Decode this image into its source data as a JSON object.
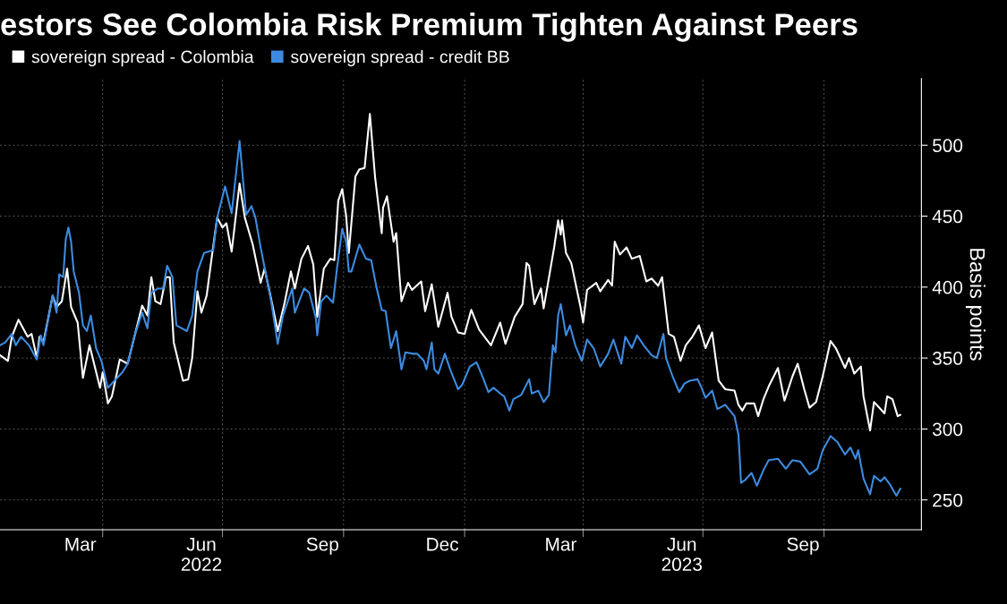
{
  "chart_data": {
    "type": "line",
    "title": "estors See Colombia Risk Premium Tighten Against Peers",
    "ylabel": "Basis points",
    "xlim": [
      "2022-01-13",
      "2023-12-14"
    ],
    "ylim": [
      229,
      547
    ],
    "yticks": [
      250,
      300,
      350,
      400,
      450,
      500
    ],
    "xticks": [
      {
        "value": "2022-03-15",
        "label": "Mar"
      },
      {
        "value": "2022-04-01",
        "label": null
      },
      {
        "value": "2022-06-15",
        "label": "Jun\n2022"
      },
      {
        "value": "2022-07-01",
        "label": null
      },
      {
        "value": "2022-09-15",
        "label": "Sep"
      },
      {
        "value": "2022-10-01",
        "label": null
      },
      {
        "value": "2022-12-15",
        "label": "Dec"
      },
      {
        "value": "2023-01-01",
        "label": null
      },
      {
        "value": "2023-03-15",
        "label": "Mar"
      },
      {
        "value": "2023-04-01",
        "label": null
      },
      {
        "value": "2023-06-15",
        "label": "Jun\n2023"
      },
      {
        "value": "2023-07-01",
        "label": null
      },
      {
        "value": "2023-09-15",
        "label": "Sep"
      },
      {
        "value": "2023-10-01",
        "label": null
      }
    ],
    "grid": true,
    "legend": "top left",
    "line_style": "solid",
    "series": [
      {
        "name": "sovereign spread - Colombia",
        "color": "#ffffff",
        "x": [
          "2022-01-13",
          "2022-01-19",
          "2022-01-22",
          "2022-01-27",
          "2022-02-03",
          "2022-02-06",
          "2022-02-10",
          "2022-02-12",
          "2022-02-15",
          "2022-02-22",
          "2022-02-25",
          "2022-03-01",
          "2022-03-05",
          "2022-03-08",
          "2022-03-13",
          "2022-03-17",
          "2022-03-22",
          "2022-03-30",
          "2022-04-01",
          "2022-04-05",
          "2022-04-08",
          "2022-04-14",
          "2022-04-20",
          "2022-05-01",
          "2022-05-05",
          "2022-05-08",
          "2022-05-11",
          "2022-05-15",
          "2022-05-19",
          "2022-05-22",
          "2022-05-25",
          "2022-06-01",
          "2022-06-05",
          "2022-06-08",
          "2022-06-12",
          "2022-06-15",
          "2022-06-19",
          "2022-06-23",
          "2022-06-27",
          "2022-07-01",
          "2022-07-04",
          "2022-07-08",
          "2022-07-14",
          "2022-07-18",
          "2022-07-24",
          "2022-07-30",
          "2022-08-02",
          "2022-08-06",
          "2022-08-12",
          "2022-08-17",
          "2022-08-22",
          "2022-08-25",
          "2022-08-30",
          "2022-09-04",
          "2022-09-08",
          "2022-09-11",
          "2022-09-16",
          "2022-09-21",
          "2022-09-24",
          "2022-09-27",
          "2022-09-30",
          "2022-10-03",
          "2022-10-05",
          "2022-10-10",
          "2022-10-13",
          "2022-10-17",
          "2022-10-21",
          "2022-10-25",
          "2022-10-30",
          "2022-10-31",
          "2022-11-03",
          "2022-11-08",
          "2022-11-10",
          "2022-11-14",
          "2022-11-19",
          "2022-11-22",
          "2022-11-29",
          "2022-12-02",
          "2022-12-07",
          "2022-12-12",
          "2022-12-19",
          "2022-12-22",
          "2022-12-27",
          "2023-01-01",
          "2023-01-06",
          "2023-01-12",
          "2023-01-21",
          "2023-01-28",
          "2023-02-01",
          "2023-02-08",
          "2023-02-14",
          "2023-02-17",
          "2023-02-19",
          "2023-02-23",
          "2023-02-28",
          "2023-03-02",
          "2023-03-10",
          "2023-03-13",
          "2023-03-15",
          "2023-03-16",
          "2023-03-19",
          "2023-03-23",
          "2023-03-30",
          "2023-04-01",
          "2023-04-04",
          "2023-04-11",
          "2023-04-14",
          "2023-04-20",
          "2023-04-23",
          "2023-04-25",
          "2023-04-29",
          "2023-05-04",
          "2023-05-08",
          "2023-05-14",
          "2023-05-19",
          "2023-05-23",
          "2023-05-28",
          "2023-05-31",
          "2023-06-05",
          "2023-06-09",
          "2023-06-14",
          "2023-06-18",
          "2023-06-23",
          "2023-06-28",
          "2023-07-03",
          "2023-07-08",
          "2023-07-13",
          "2023-07-18",
          "2023-07-25",
          "2023-07-28",
          "2023-07-31",
          "2023-08-03",
          "2023-08-09",
          "2023-08-12",
          "2023-08-16",
          "2023-08-20",
          "2023-08-27",
          "2023-09-01",
          "2023-09-07",
          "2023-09-11",
          "2023-09-16",
          "2023-09-20",
          "2023-09-25",
          "2023-09-30",
          "2023-10-06",
          "2023-10-10",
          "2023-10-17",
          "2023-10-20",
          "2023-10-24",
          "2023-10-29",
          "2023-10-31",
          "2023-11-05",
          "2023-11-08",
          "2023-11-16",
          "2023-11-18",
          "2023-11-22",
          "2023-11-26",
          "2023-11-28"
        ],
        "values": [
          352,
          348,
          365,
          377,
          365,
          367,
          350,
          365,
          361,
          394,
          386,
          390,
          413,
          386,
          375,
          336,
          359,
          329,
          340,
          318,
          323,
          349,
          346,
          387,
          380,
          407,
          390,
          388,
          407,
          407,
          361,
          334,
          335,
          350,
          397,
          382,
          394,
          422,
          449,
          442,
          445,
          425,
          473,
          449,
          430,
          403,
          413,
          396,
          369,
          388,
          411,
          399,
          420,
          429,
          416,
          379,
          413,
          420,
          419,
          461,
          469,
          450,
          424,
          478,
          483,
          484,
          522,
          477,
          438,
          456,
          464,
          432,
          438,
          390,
          403,
          398,
          404,
          383,
          402,
          372,
          396,
          379,
          368,
          367,
          384,
          370,
          359,
          375,
          360,
          379,
          388,
          417,
          415,
          388,
          399,
          385,
          428,
          447,
          437,
          447,
          424,
          417,
          386,
          375,
          398,
          403,
          397,
          405,
          401,
          432,
          423,
          428,
          420,
          422,
          404,
          406,
          401,
          407,
          367,
          365,
          348,
          359,
          365,
          373,
          357,
          368,
          334,
          328,
          327,
          317,
          313,
          318,
          318,
          309,
          321,
          330,
          343,
          320,
          337,
          346,
          328,
          315,
          319,
          337,
          362,
          357,
          343,
          350,
          339,
          344,
          323,
          299,
          319,
          311,
          323,
          321,
          309,
          310
        ]
      },
      {
        "name": "sovereign spread - credit BB",
        "color": "#3d8be0",
        "x": [
          "2022-01-13",
          "2022-01-17",
          "2022-01-22",
          "2022-01-25",
          "2022-01-29",
          "2022-02-04",
          "2022-02-10",
          "2022-02-13",
          "2022-02-15",
          "2022-02-22",
          "2022-02-25",
          "2022-02-27",
          "2022-03-02",
          "2022-03-04",
          "2022-03-06",
          "2022-03-08",
          "2022-03-10",
          "2022-03-14",
          "2022-03-17",
          "2022-03-20",
          "2022-03-23",
          "2022-03-27",
          "2022-03-31",
          "2022-04-05",
          "2022-04-09",
          "2022-04-16",
          "2022-04-20",
          "2022-04-25",
          "2022-05-01",
          "2022-05-05",
          "2022-05-08",
          "2022-05-13",
          "2022-05-17",
          "2022-05-20",
          "2022-05-24",
          "2022-05-27",
          "2022-06-04",
          "2022-06-08",
          "2022-06-12",
          "2022-06-17",
          "2022-06-24",
          "2022-06-27",
          "2022-07-03",
          "2022-07-08",
          "2022-07-14",
          "2022-07-19",
          "2022-07-23",
          "2022-07-26",
          "2022-07-30",
          "2022-08-03",
          "2022-08-07",
          "2022-08-12",
          "2022-08-16",
          "2022-08-23",
          "2022-08-25",
          "2022-09-01",
          "2022-09-05",
          "2022-09-10",
          "2022-09-11",
          "2022-09-14",
          "2022-09-18",
          "2022-09-23",
          "2022-09-26",
          "2022-09-30",
          "2022-10-03",
          "2022-10-05",
          "2022-10-07",
          "2022-10-13",
          "2022-10-18",
          "2022-10-22",
          "2022-10-26",
          "2022-10-30",
          "2022-11-02",
          "2022-11-06",
          "2022-11-10",
          "2022-11-14",
          "2022-11-17",
          "2022-11-23",
          "2022-11-26",
          "2022-12-01",
          "2022-12-03",
          "2022-12-07",
          "2022-12-09",
          "2022-12-12",
          "2022-12-17",
          "2022-12-21",
          "2022-12-27",
          "2022-12-30",
          "2023-01-05",
          "2023-01-10",
          "2023-01-15",
          "2023-01-19",
          "2023-01-23",
          "2023-01-28",
          "2023-01-31",
          "2023-02-04",
          "2023-02-07",
          "2023-02-13",
          "2023-02-19",
          "2023-02-21",
          "2023-02-26",
          "2023-03-02",
          "2023-03-06",
          "2023-03-09",
          "2023-03-11",
          "2023-03-13",
          "2023-03-15",
          "2023-03-19",
          "2023-03-22",
          "2023-03-26",
          "2023-03-31",
          "2023-04-04",
          "2023-04-09",
          "2023-04-14",
          "2023-04-20",
          "2023-04-24",
          "2023-04-30",
          "2023-05-03",
          "2023-05-08",
          "2023-05-12",
          "2023-05-17",
          "2023-05-23",
          "2023-05-27",
          "2023-06-01",
          "2023-06-03",
          "2023-06-08",
          "2023-06-13",
          "2023-06-17",
          "2023-06-21",
          "2023-06-27",
          "2023-06-30",
          "2023-07-03",
          "2023-07-08",
          "2023-07-12",
          "2023-07-18",
          "2023-07-25",
          "2023-07-28",
          "2023-07-30",
          "2023-08-02",
          "2023-08-07",
          "2023-08-11",
          "2023-08-16",
          "2023-08-20",
          "2023-08-27",
          "2023-09-02",
          "2023-09-07",
          "2023-09-13",
          "2023-09-20",
          "2023-09-26",
          "2023-09-30",
          "2023-10-06",
          "2023-10-11",
          "2023-10-17",
          "2023-10-21",
          "2023-10-25",
          "2023-10-27",
          "2023-10-31",
          "2023-11-05",
          "2023-11-08",
          "2023-11-13",
          "2023-11-16",
          "2023-11-20",
          "2023-11-25",
          "2023-11-28"
        ],
        "values": [
          359,
          361,
          367,
          359,
          365,
          359,
          349,
          366,
          359,
          394,
          382,
          409,
          407,
          434,
          442,
          432,
          411,
          396,
          373,
          369,
          380,
          357,
          348,
          329,
          333,
          340,
          346,
          365,
          382,
          371,
          396,
          399,
          399,
          415,
          407,
          373,
          369,
          380,
          411,
          424,
          426,
          449,
          471,
          452,
          503,
          451,
          457,
          449,
          428,
          409,
          390,
          360,
          380,
          399,
          382,
          399,
          396,
          378,
          366,
          390,
          394,
          389,
          413,
          441,
          432,
          411,
          411,
          430,
          420,
          419,
          400,
          384,
          383,
          357,
          369,
          342,
          354,
          353,
          353,
          348,
          342,
          361,
          342,
          339,
          353,
          342,
          328,
          331,
          344,
          347,
          336,
          326,
          329,
          325,
          323,
          313,
          321,
          324,
          335,
          325,
          327,
          319,
          324,
          359,
          354,
          380,
          388,
          366,
          373,
          359,
          348,
          363,
          357,
          344,
          353,
          363,
          346,
          365,
          357,
          366,
          359,
          352,
          350,
          367,
          350,
          337,
          326,
          332,
          334,
          335,
          329,
          322,
          327,
          314,
          317,
          309,
          296,
          262,
          264,
          269,
          260,
          271,
          278,
          279,
          272,
          278,
          277,
          268,
          272,
          285,
          295,
          291,
          282,
          287,
          279,
          285,
          265,
          254,
          267,
          263,
          266,
          261,
          253,
          258
        ]
      }
    ]
  }
}
